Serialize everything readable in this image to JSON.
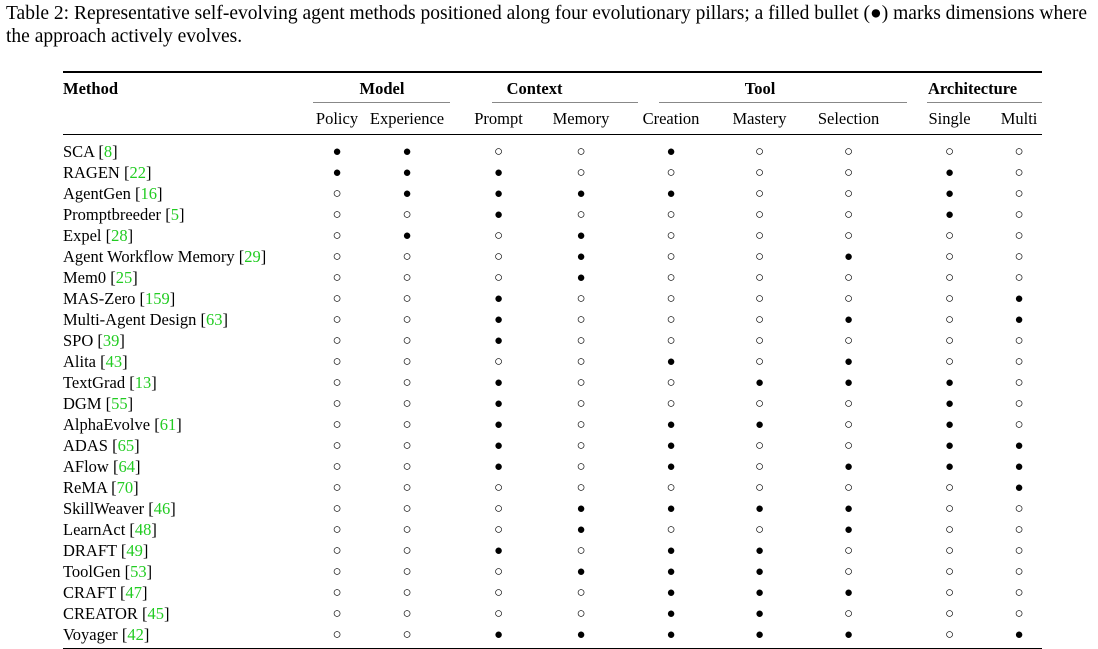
{
  "caption": "Table 2: Representative self-evolving agent methods positioned along four evolutionary pillars; a filled bullet (●) marks dimensions where the approach actively evolves.",
  "table": {
    "method_header": "Method",
    "groups": [
      {
        "label": "Model",
        "span": 2
      },
      {
        "label": "Context",
        "span": 2
      },
      {
        "label": "Tool",
        "span": 3
      },
      {
        "label": "Architecture",
        "span": 2
      }
    ],
    "subheaders": [
      "Policy",
      "Experience",
      "Prompt",
      "Memory",
      "Creation",
      "Mastery",
      "Selection",
      "Single",
      "Multi"
    ],
    "filled_symbol": "●",
    "empty_symbol": "○",
    "rows": [
      {
        "name": "SCA",
        "ref": "8",
        "marks": [
          1,
          1,
          0,
          0,
          1,
          0,
          0,
          0,
          0
        ]
      },
      {
        "name": "RAGEN",
        "ref": "22",
        "marks": [
          1,
          1,
          1,
          0,
          0,
          0,
          0,
          1,
          0
        ]
      },
      {
        "name": "AgentGen ",
        "ref": "16",
        "marks": [
          0,
          1,
          1,
          1,
          1,
          0,
          0,
          1,
          0
        ]
      },
      {
        "name": "Promptbreeder",
        "ref": "5",
        "marks": [
          0,
          0,
          1,
          0,
          0,
          0,
          0,
          1,
          0
        ]
      },
      {
        "name": "Expel",
        "ref": "28",
        "marks": [
          0,
          1,
          0,
          1,
          0,
          0,
          0,
          0,
          0
        ]
      },
      {
        "name": "Agent Workflow Memory",
        "ref": "29",
        "marks": [
          0,
          0,
          0,
          1,
          0,
          0,
          1,
          0,
          0
        ]
      },
      {
        "name": "Mem0",
        "ref": "25",
        "marks": [
          0,
          0,
          0,
          1,
          0,
          0,
          0,
          0,
          0
        ]
      },
      {
        "name": "MAS-Zero",
        "ref": "159",
        "marks": [
          0,
          0,
          1,
          0,
          0,
          0,
          0,
          0,
          1
        ]
      },
      {
        "name": "Multi-Agent Design",
        "ref": "63",
        "marks": [
          0,
          0,
          1,
          0,
          0,
          0,
          1,
          0,
          1
        ]
      },
      {
        "name": "SPO",
        "ref": "39",
        "marks": [
          0,
          0,
          1,
          0,
          0,
          0,
          0,
          0,
          0
        ]
      },
      {
        "name": "Alita",
        "ref": "43",
        "marks": [
          0,
          0,
          0,
          0,
          1,
          0,
          1,
          0,
          0
        ]
      },
      {
        "name": "TextGrad",
        "ref": "13",
        "marks": [
          0,
          0,
          1,
          0,
          0,
          1,
          1,
          1,
          0
        ]
      },
      {
        "name": "DGM",
        "ref": "55",
        "marks": [
          0,
          0,
          1,
          0,
          0,
          0,
          0,
          1,
          0
        ]
      },
      {
        "name": "AlphaEvolve",
        "ref": "61",
        "marks": [
          0,
          0,
          1,
          0,
          1,
          1,
          0,
          1,
          0
        ]
      },
      {
        "name": "ADAS",
        "ref": "65",
        "marks": [
          0,
          0,
          1,
          0,
          1,
          0,
          0,
          1,
          1
        ]
      },
      {
        "name": "AFlow",
        "ref": "64",
        "marks": [
          0,
          0,
          1,
          0,
          1,
          0,
          1,
          1,
          1
        ]
      },
      {
        "name": "ReMA",
        "ref": "70",
        "marks": [
          0,
          0,
          0,
          0,
          0,
          0,
          0,
          0,
          1
        ]
      },
      {
        "name": "SkillWeaver",
        "ref": "46",
        "marks": [
          0,
          0,
          0,
          1,
          1,
          1,
          1,
          0,
          0
        ]
      },
      {
        "name": "LearnAct",
        "ref": "48",
        "marks": [
          0,
          0,
          0,
          1,
          0,
          0,
          1,
          0,
          0
        ]
      },
      {
        "name": "DRAFT",
        "ref": "49",
        "marks": [
          0,
          0,
          1,
          0,
          1,
          1,
          0,
          0,
          0
        ]
      },
      {
        "name": "ToolGen",
        "ref": "53",
        "marks": [
          0,
          0,
          0,
          1,
          1,
          1,
          0,
          0,
          0
        ]
      },
      {
        "name": "CRAFT",
        "ref": "47",
        "marks": [
          0,
          0,
          0,
          0,
          1,
          1,
          1,
          0,
          0
        ]
      },
      {
        "name": "CREATOR",
        "ref": "45",
        "marks": [
          0,
          0,
          0,
          0,
          1,
          1,
          0,
          0,
          0
        ]
      },
      {
        "name": "Voyager",
        "ref": "42",
        "marks": [
          0,
          0,
          1,
          1,
          1,
          1,
          1,
          0,
          1
        ]
      }
    ]
  },
  "colors": {
    "reference": "#22cc22",
    "text": "#000000"
  }
}
